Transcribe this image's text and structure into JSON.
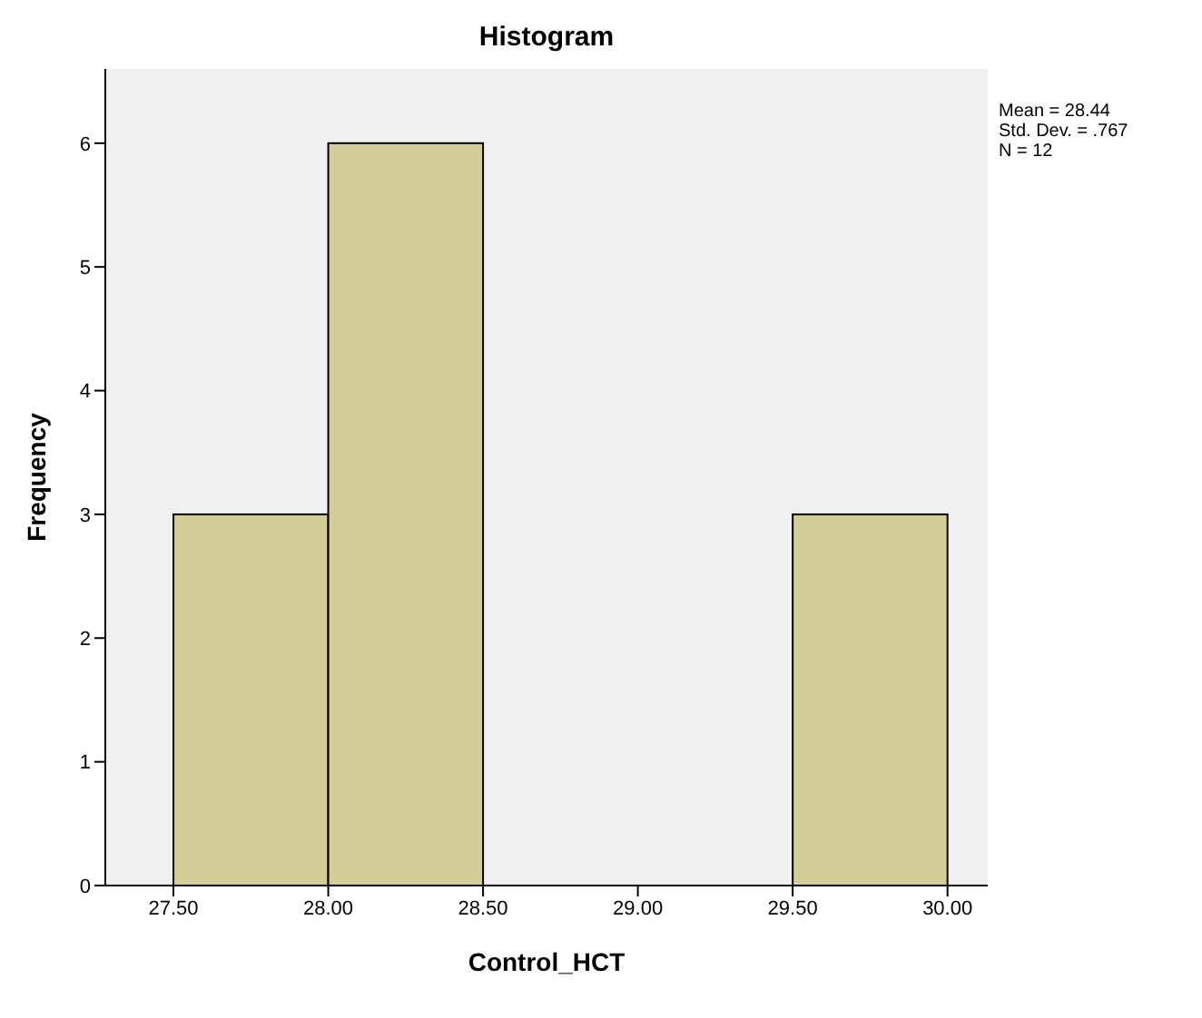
{
  "chart_data": {
    "type": "histogram",
    "title": "Histogram",
    "xlabel": "Control_HCT",
    "ylabel": "Frequency",
    "bins": [
      27.5,
      28,
      28.5,
      29,
      29.5,
      30
    ],
    "values": [
      3,
      6,
      0,
      0,
      3
    ],
    "color": "#d3ce97",
    "xlim": [
      27.28,
      30.13
    ],
    "xticks": [
      {
        "value": 27.5,
        "label": "27.50"
      },
      {
        "value": 28,
        "label": "28.00"
      },
      {
        "value": 28.5,
        "label": "28.50"
      },
      {
        "value": 29,
        "label": "29.00"
      },
      {
        "value": 29.5,
        "label": "29.50"
      },
      {
        "value": 30,
        "label": "30.00"
      }
    ],
    "ylim": [
      0,
      6.6
    ],
    "yticks": [
      0,
      1,
      2,
      3,
      4,
      5,
      6
    ],
    "annotations": [
      "Mean = 28.44",
      "Std. Dev. = .767",
      "N = 12"
    ]
  }
}
